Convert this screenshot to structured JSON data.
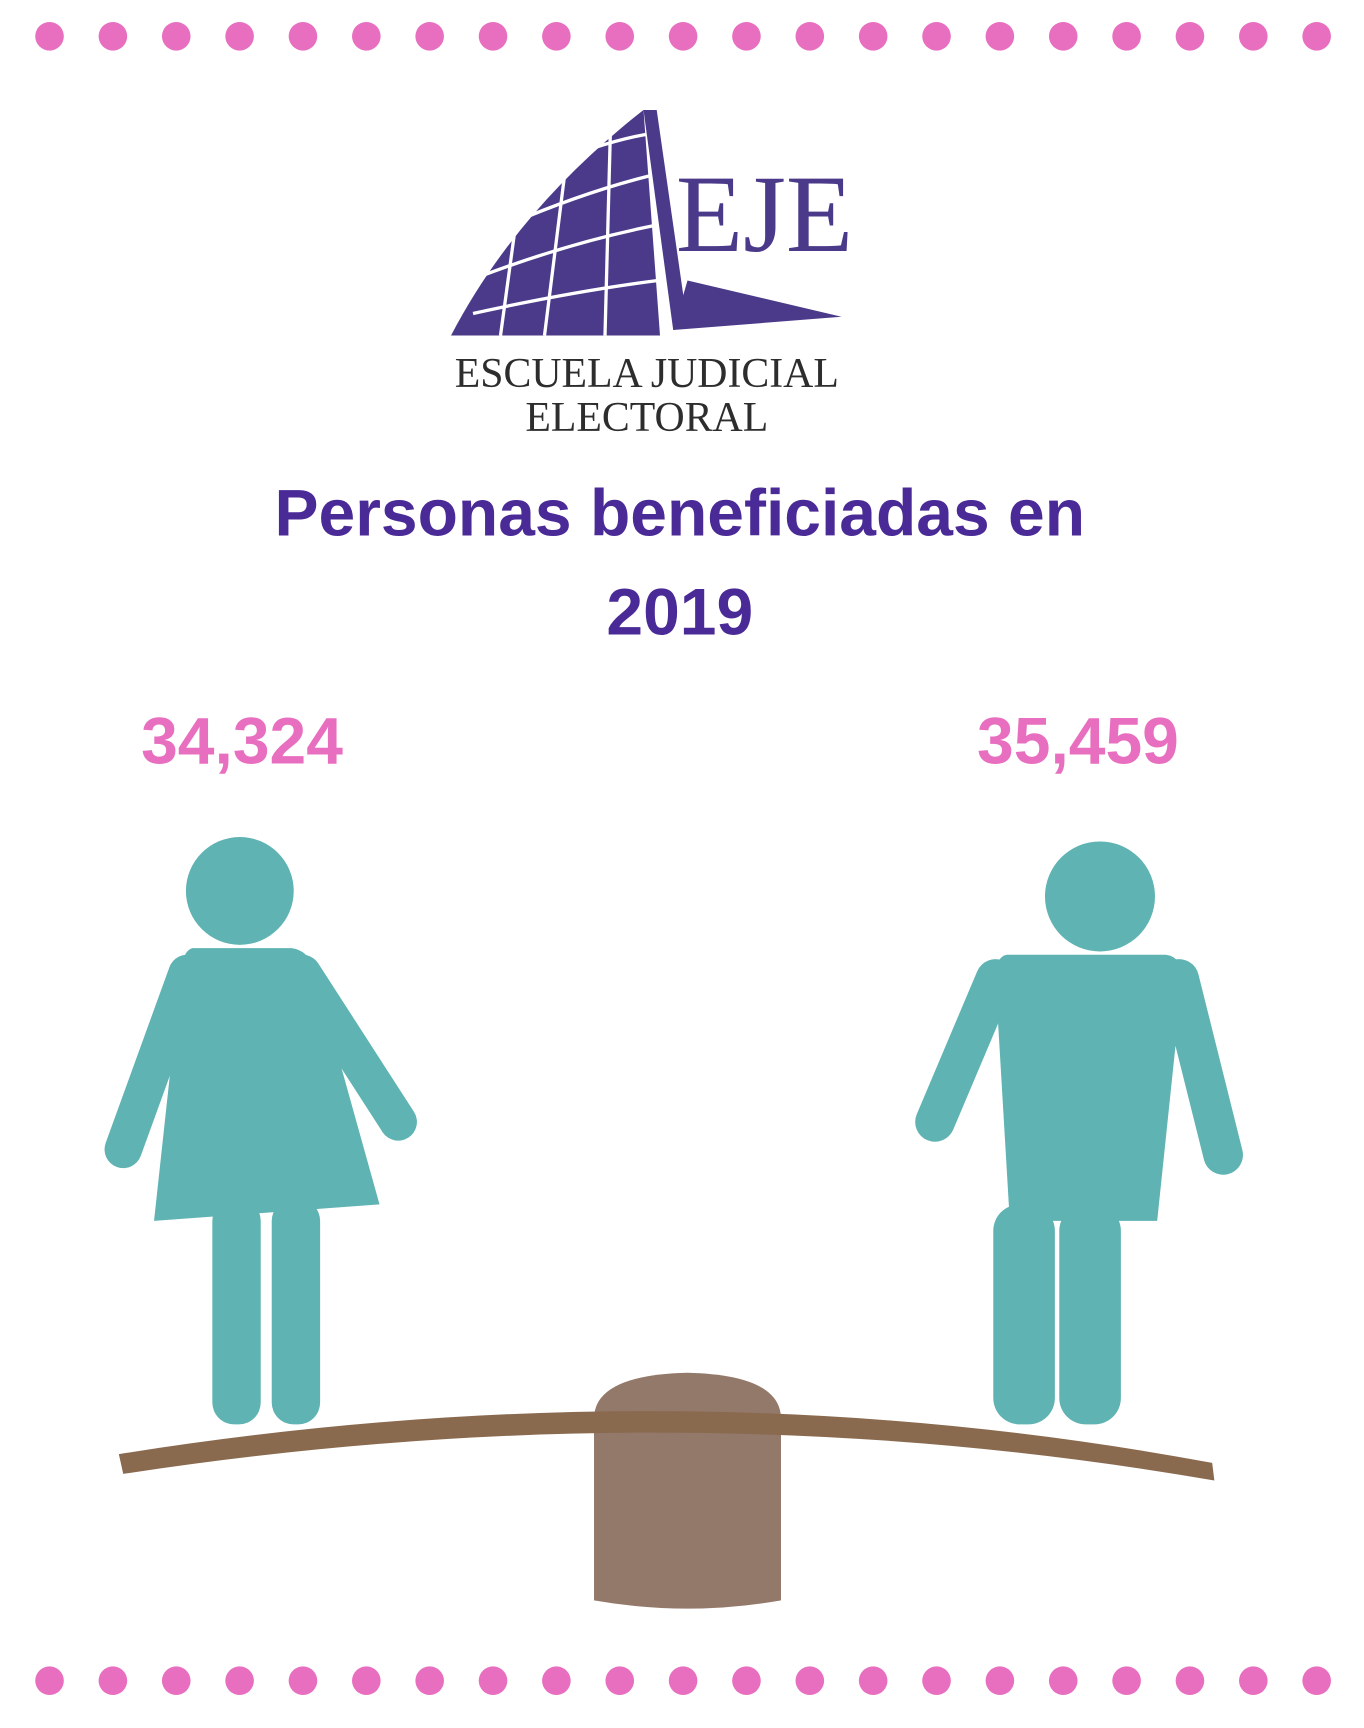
{
  "logo": {
    "mark": "EJE",
    "line1": "ESCUELA JUDICIAL",
    "line2": "ELECTORAL"
  },
  "title": {
    "line1": "Personas beneficiadas en",
    "line2": "2019"
  },
  "figures": [
    {
      "value": "34,324"
    },
    {
      "value": "35,459"
    }
  ]
}
